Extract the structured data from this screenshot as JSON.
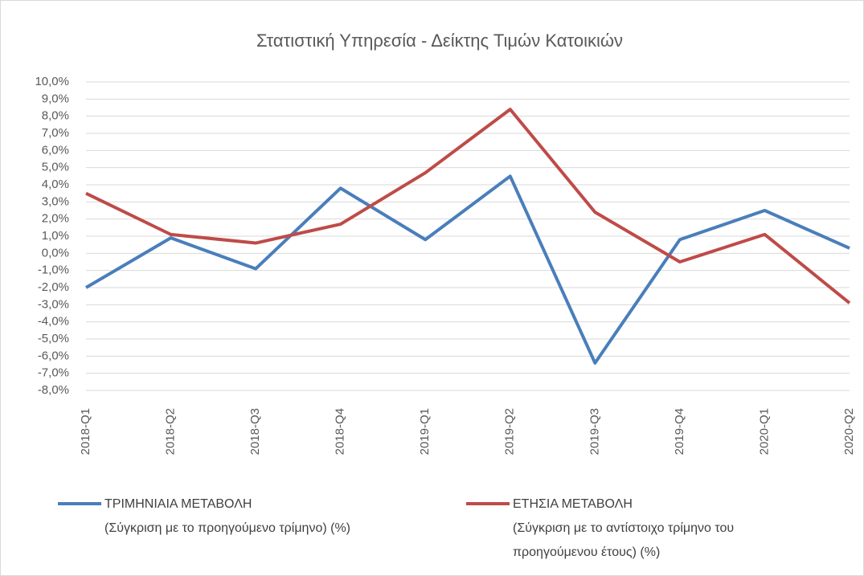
{
  "chart_data": {
    "type": "line",
    "title": "Στατιστική  Υπηρεσία - Δείκτης Τιμών Κατοικιών",
    "categories": [
      "2018-Q1",
      "2018-Q2",
      "2018-Q3",
      "2018-Q4",
      "2019-Q1",
      "2019-Q2",
      "2019-Q3",
      "2019-Q4",
      "2020-Q1",
      "2020-Q2"
    ],
    "series": [
      {
        "name": "ΤΡΙΜΗΝΙΑΙΑ ΜΕΤΑΒΟΛΗ",
        "description_lines": [
          "(Σύγκριση με το προηγούμενο τρίμηνο)     (%)"
        ],
        "color": "#4a7ebb",
        "values": [
          -2.0,
          0.9,
          -0.9,
          3.8,
          0.8,
          4.5,
          -6.4,
          0.8,
          2.5,
          0.3
        ]
      },
      {
        "name": "ΕΤΗΣΙΑ ΜΕΤΑΒΟΛΗ",
        "description_lines": [
          "(Σύγκριση με το αντίστοιχο τρίμηνο του",
          "προηγούμενου έτους)     (%)"
        ],
        "color": "#be4b48",
        "values": [
          3.5,
          1.1,
          0.6,
          1.7,
          4.7,
          8.4,
          2.4,
          -0.5,
          1.1,
          -2.9
        ]
      }
    ],
    "ylim": [
      -8,
      10
    ],
    "yticks": [
      {
        "value": 10,
        "label": "10,0%"
      },
      {
        "value": 9,
        "label": "9,0%"
      },
      {
        "value": 8,
        "label": "8,0%"
      },
      {
        "value": 7,
        "label": "7,0%"
      },
      {
        "value": 6,
        "label": "6,0%"
      },
      {
        "value": 5,
        "label": "5,0%"
      },
      {
        "value": 4,
        "label": "4,0%"
      },
      {
        "value": 3,
        "label": "3,0%"
      },
      {
        "value": 2,
        "label": "2,0%"
      },
      {
        "value": 1,
        "label": "1,0%"
      },
      {
        "value": 0,
        "label": "0,0%"
      },
      {
        "value": -1,
        "label": "-1,0%"
      },
      {
        "value": -2,
        "label": "-2,0%"
      },
      {
        "value": -3,
        "label": "-3,0%"
      },
      {
        "value": -4,
        "label": "-4,0%"
      },
      {
        "value": -5,
        "label": "-5,0%"
      },
      {
        "value": -6,
        "label": "-6,0%"
      },
      {
        "value": -7,
        "label": "-7,0%"
      },
      {
        "value": -8,
        "label": "-8,0%"
      }
    ],
    "grid": true
  }
}
